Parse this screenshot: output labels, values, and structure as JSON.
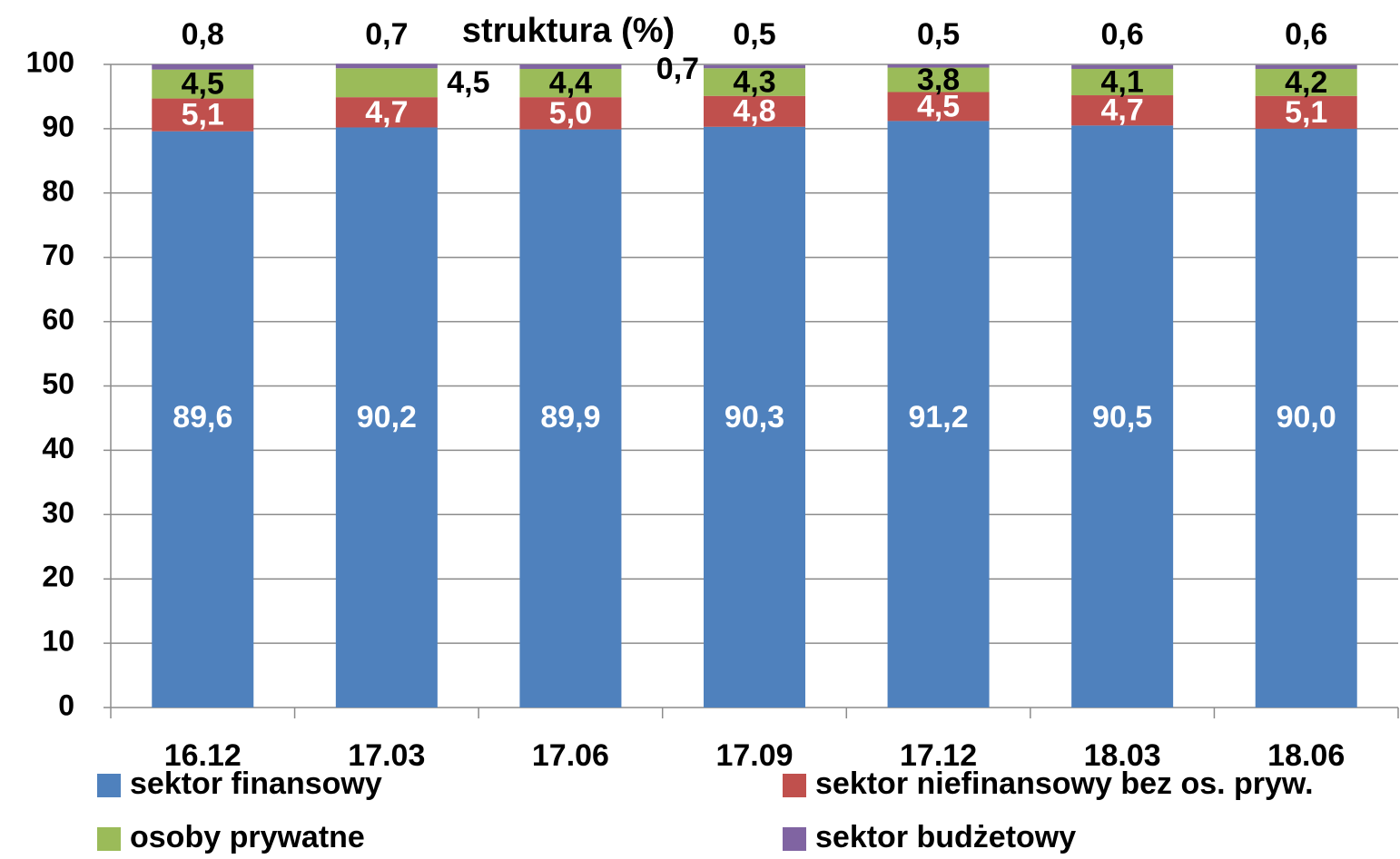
{
  "chart_data": {
    "type": "stacked_bar",
    "title": "struktura (%)",
    "categories": [
      "16.12",
      "17.03",
      "17.06",
      "17.09",
      "17.12",
      "18.03",
      "18.06"
    ],
    "series": [
      {
        "name": "sektor finansowy",
        "color": "#4f81bd",
        "values": [
          89.6,
          90.2,
          89.9,
          90.3,
          91.2,
          90.5,
          90.0
        ],
        "value_labels": [
          "89,6",
          "90,2",
          "89,9",
          "90,3",
          "91,2",
          "90,5",
          "90,0"
        ]
      },
      {
        "name": "sektor niefinansowy bez os. pryw.",
        "color": "#c0504d",
        "values": [
          5.1,
          4.7,
          5.0,
          4.8,
          4.5,
          4.7,
          5.1
        ],
        "value_labels": [
          "5,1",
          "4,7",
          "5,0",
          "4,8",
          "4,5",
          "4,7",
          "5,1"
        ]
      },
      {
        "name": "osoby prywatne",
        "color": "#9bbb59",
        "values": [
          4.5,
          4.5,
          4.4,
          4.3,
          3.8,
          4.1,
          4.2
        ],
        "value_labels": [
          "4,5",
          "4,5",
          "4,4",
          "4,3",
          "3,8",
          "4,1",
          "4,2"
        ]
      },
      {
        "name": "sektor budżetowy",
        "color": "#8064a2",
        "values": [
          0.8,
          0.7,
          0.7,
          0.5,
          0.5,
          0.6,
          0.6
        ],
        "value_labels": [
          "0,8",
          "0,7",
          "0,7",
          "0,5",
          "0,5",
          "0,6",
          "0,6"
        ]
      }
    ],
    "ylim": [
      0,
      100
    ],
    "yticks": [
      0,
      10,
      20,
      30,
      40,
      50,
      60,
      70,
      80,
      90,
      100
    ],
    "grid": true
  }
}
